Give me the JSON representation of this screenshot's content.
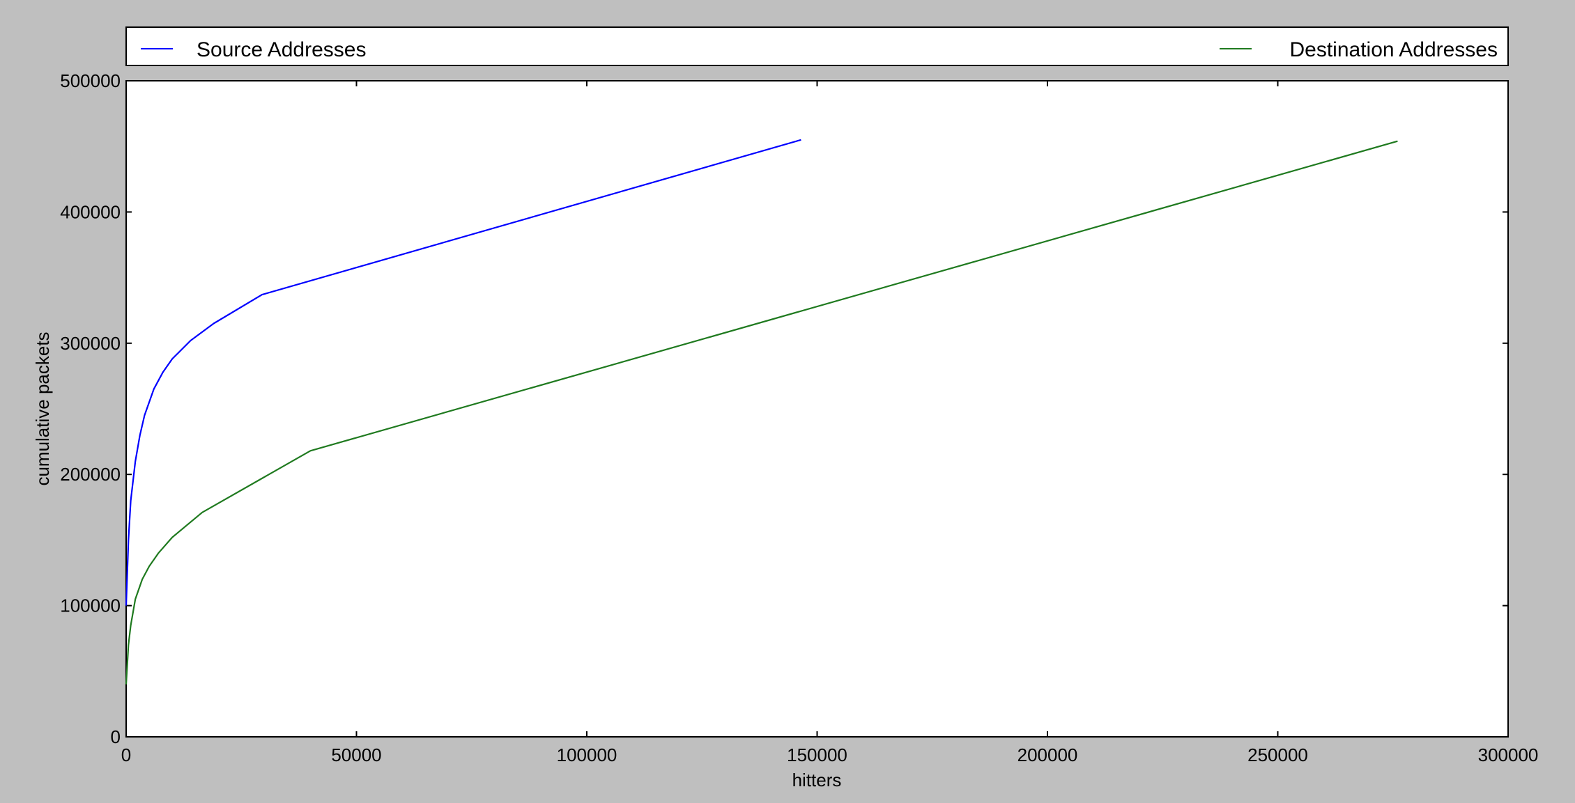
{
  "chart_data": {
    "type": "line",
    "title": "",
    "xlabel": "hitters",
    "ylabel": "cumulative packets",
    "xlim": [
      0,
      300000
    ],
    "ylim": [
      0,
      500000
    ],
    "xticks": [
      0,
      50000,
      100000,
      150000,
      200000,
      250000,
      300000
    ],
    "xtick_labels": [
      "0",
      "50000",
      "100000",
      "150000",
      "200000",
      "250000",
      "300000"
    ],
    "yticks": [
      0,
      100000,
      200000,
      300000,
      400000,
      500000
    ],
    "ytick_labels": [
      "0",
      "100000",
      "200000",
      "300000",
      "400000",
      "500000"
    ],
    "grid": false,
    "legend_position": "top, above plot",
    "series": [
      {
        "name": "Source Addresses",
        "color": "#0000ff",
        "points": [
          [
            0,
            100000
          ],
          [
            500,
            150000
          ],
          [
            1000,
            180000
          ],
          [
            2000,
            210000
          ],
          [
            3000,
            230000
          ],
          [
            4000,
            245000
          ],
          [
            6000,
            265000
          ],
          [
            8000,
            278000
          ],
          [
            10000,
            288000
          ],
          [
            14000,
            302000
          ],
          [
            19000,
            315000
          ],
          [
            29500,
            337000
          ],
          [
            146500,
            455000
          ]
        ]
      },
      {
        "name": "Destination Addresses",
        "color": "#1f7a1f",
        "points": [
          [
            0,
            40000
          ],
          [
            500,
            70000
          ],
          [
            1000,
            85000
          ],
          [
            2000,
            105000
          ],
          [
            3500,
            120000
          ],
          [
            5000,
            130000
          ],
          [
            7000,
            140000
          ],
          [
            10000,
            152000
          ],
          [
            16500,
            171000
          ],
          [
            40000,
            218000
          ],
          [
            276000,
            454000
          ]
        ]
      }
    ]
  }
}
